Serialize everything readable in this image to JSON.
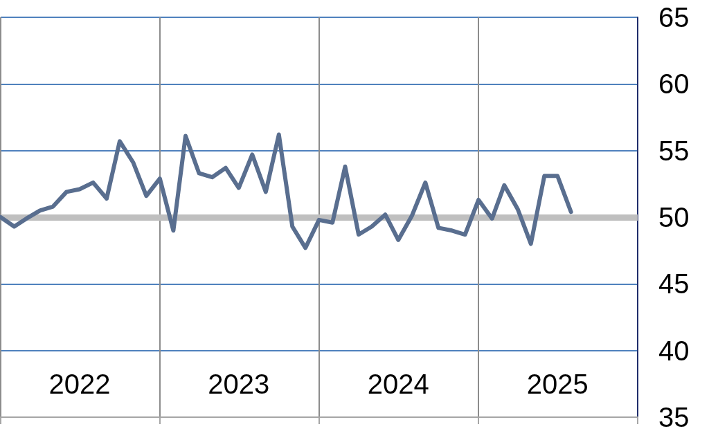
{
  "chart_data": {
    "type": "line",
    "x": [
      "2022-01",
      "2022-02",
      "2022-03",
      "2022-04",
      "2022-05",
      "2022-06",
      "2022-07",
      "2022-08",
      "2022-09",
      "2022-10",
      "2022-11",
      "2022-12",
      "2023-01",
      "2023-02",
      "2023-03",
      "2023-04",
      "2023-05",
      "2023-06",
      "2023-07",
      "2023-08",
      "2023-09",
      "2023-10",
      "2023-11",
      "2023-12",
      "2024-01",
      "2024-02",
      "2024-03",
      "2024-04",
      "2024-05",
      "2024-06",
      "2024-07",
      "2024-08",
      "2024-09",
      "2024-10",
      "2024-11",
      "2024-12",
      "2025-01",
      "2025-02",
      "2025-03",
      "2025-04",
      "2025-05",
      "2025-06",
      "2025-07",
      "2025-08"
    ],
    "series": [
      {
        "color": "#596e8f",
        "values": [
          50.0,
          49.3,
          49.9,
          50.5,
          50.8,
          51.9,
          52.1,
          52.6,
          51.4,
          55.7,
          54.1,
          51.6,
          52.9,
          49.0,
          56.1,
          53.3,
          53.0,
          53.7,
          52.2,
          54.7,
          51.9,
          56.2,
          49.3,
          47.7,
          49.8,
          49.6,
          53.8,
          48.7,
          49.3,
          50.2,
          48.3,
          50.1,
          52.6,
          49.2,
          49.0,
          48.7,
          51.3,
          49.9,
          52.4,
          50.6,
          48.0,
          53.1,
          53.1,
          50.4
        ]
      }
    ],
    "xlim": [
      "2022-01",
      "2026-01"
    ],
    "xticks": [
      {
        "value": "2022-01",
        "label": null
      },
      {
        "value": "2022-07",
        "label": "2022"
      },
      {
        "value": "2023-01",
        "label": null
      },
      {
        "value": "2023-07",
        "label": "2023"
      },
      {
        "value": "2024-01",
        "label": null
      },
      {
        "value": "2024-07",
        "label": "2024"
      },
      {
        "value": "2025-01",
        "label": null
      },
      {
        "value": "2025-07",
        "label": "2025"
      },
      {
        "value": "2026-01",
        "label": null
      }
    ],
    "ylim": [
      35,
      65
    ],
    "yticks": [
      35,
      40,
      45,
      50,
      55,
      60,
      65
    ],
    "ref_lines": [
      {
        "axis": "y",
        "value": 50,
        "color": "#bfbfbf"
      }
    ],
    "grid": true,
    "marker": "none",
    "line_style": "solid"
  }
}
